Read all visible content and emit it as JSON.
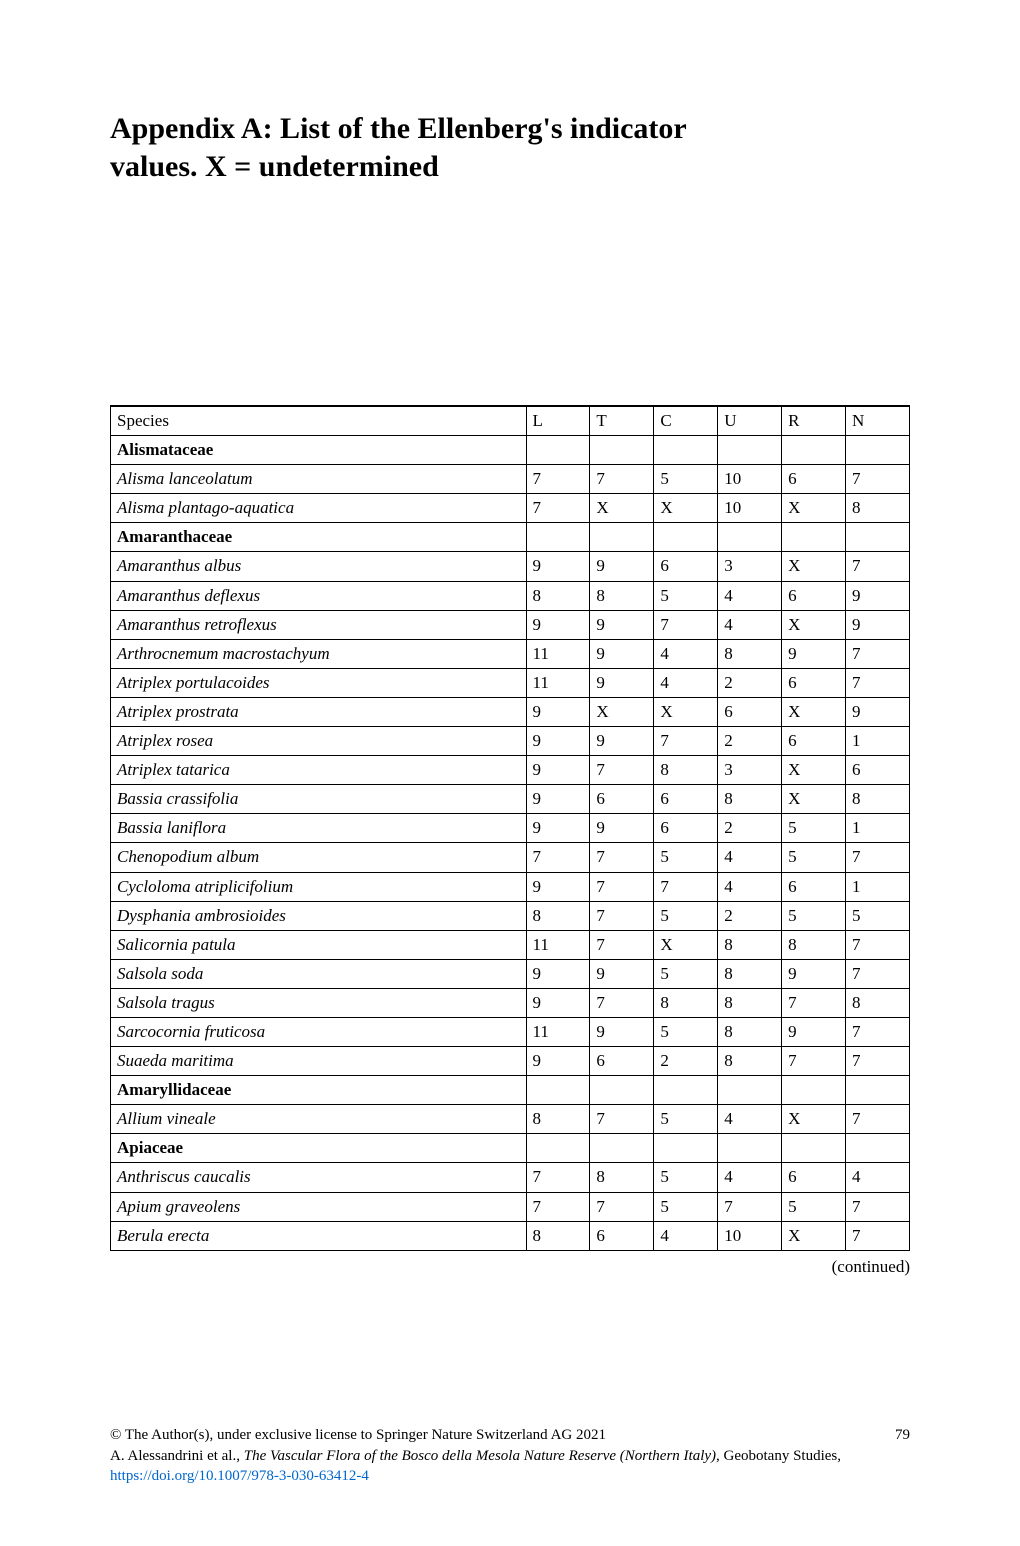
{
  "title_line1": "Appendix A: List of the Ellenberg's indicator",
  "title_line2": "values. X = undetermined",
  "columns": [
    "Species",
    "L",
    "T",
    "C",
    "U",
    "R",
    "N"
  ],
  "rows": [
    {
      "species": "Alismataceae",
      "family": true,
      "L": "",
      "T": "",
      "C": "",
      "U": "",
      "R": "",
      "N": ""
    },
    {
      "species": "Alisma lanceolatum",
      "L": "7",
      "T": "7",
      "C": "5",
      "U": "10",
      "R": "6",
      "N": "7"
    },
    {
      "species": "Alisma plantago-aquatica",
      "L": "7",
      "T": "X",
      "C": "X",
      "U": "10",
      "R": "X",
      "N": "8"
    },
    {
      "species": "Amaranthaceae",
      "family": true,
      "L": "",
      "T": "",
      "C": "",
      "U": "",
      "R": "",
      "N": ""
    },
    {
      "species": "Amaranthus albus",
      "L": "9",
      "T": "9",
      "C": "6",
      "U": "3",
      "R": "X",
      "N": "7"
    },
    {
      "species": "Amaranthus deflexus",
      "L": "8",
      "T": "8",
      "C": "5",
      "U": "4",
      "R": "6",
      "N": "9"
    },
    {
      "species": "Amaranthus retroflexus",
      "L": "9",
      "T": "9",
      "C": "7",
      "U": "4",
      "R": "X",
      "N": "9"
    },
    {
      "species": "Arthrocnemum macrostachyum",
      "L": "11",
      "T": "9",
      "C": "4",
      "U": "8",
      "R": "9",
      "N": "7"
    },
    {
      "species": "Atriplex portulacoides",
      "L": "11",
      "T": "9",
      "C": "4",
      "U": "2",
      "R": "6",
      "N": "7"
    },
    {
      "species": "Atriplex prostrata",
      "L": "9",
      "T": "X",
      "C": "X",
      "U": "6",
      "R": "X",
      "N": "9"
    },
    {
      "species": "Atriplex rosea",
      "L": "9",
      "T": "9",
      "C": "7",
      "U": "2",
      "R": "6",
      "N": "1"
    },
    {
      "species": "Atriplex tatarica",
      "L": "9",
      "T": "7",
      "C": "8",
      "U": "3",
      "R": "X",
      "N": "6"
    },
    {
      "species": "Bassia crassifolia",
      "L": "9",
      "T": "6",
      "C": "6",
      "U": "8",
      "R": "X",
      "N": "8"
    },
    {
      "species": "Bassia laniflora",
      "L": "9",
      "T": "9",
      "C": "6",
      "U": "2",
      "R": "5",
      "N": "1"
    },
    {
      "species": "Chenopodium album",
      "L": "7",
      "T": "7",
      "C": "5",
      "U": "4",
      "R": "5",
      "N": "7"
    },
    {
      "species": "Cycloloma atriplicifolium",
      "L": "9",
      "T": "7",
      "C": "7",
      "U": "4",
      "R": "6",
      "N": "1"
    },
    {
      "species": "Dysphania ambrosioides",
      "L": "8",
      "T": "7",
      "C": "5",
      "U": "2",
      "R": "5",
      "N": "5"
    },
    {
      "species": "Salicornia patula",
      "L": "11",
      "T": "7",
      "C": "X",
      "U": "8",
      "R": "8",
      "N": "7"
    },
    {
      "species": "Salsola soda",
      "L": "9",
      "T": "9",
      "C": "5",
      "U": "8",
      "R": "9",
      "N": "7"
    },
    {
      "species": "Salsola tragus",
      "L": "9",
      "T": "7",
      "C": "8",
      "U": "8",
      "R": "7",
      "N": "8"
    },
    {
      "species": "Sarcocornia fruticosa",
      "L": "11",
      "T": "9",
      "C": "5",
      "U": "8",
      "R": "9",
      "N": "7"
    },
    {
      "species": "Suaeda maritima",
      "L": "9",
      "T": "6",
      "C": "2",
      "U": "8",
      "R": "7",
      "N": "7"
    },
    {
      "species": "Amaryllidaceae",
      "family": true,
      "L": "",
      "T": "",
      "C": "",
      "U": "",
      "R": "",
      "N": ""
    },
    {
      "species": "Allium vineale",
      "L": "8",
      "T": "7",
      "C": "5",
      "U": "4",
      "R": "X",
      "N": "7"
    },
    {
      "species": "Apiaceae",
      "family": true,
      "L": "",
      "T": "",
      "C": "",
      "U": "",
      "R": "",
      "N": ""
    },
    {
      "species": "Anthriscus caucalis",
      "L": "7",
      "T": "8",
      "C": "5",
      "U": "4",
      "R": "6",
      "N": "4"
    },
    {
      "species": "Apium graveolens",
      "L": "7",
      "T": "7",
      "C": "5",
      "U": "7",
      "R": "5",
      "N": "7"
    },
    {
      "species": "Berula erecta",
      "L": "8",
      "T": "6",
      "C": "4",
      "U": "10",
      "R": "X",
      "N": "7"
    }
  ],
  "continued_text": "(continued)",
  "footer": {
    "copyright": "© The Author(s), under exclusive license to Springer Nature Switzerland AG 2021",
    "authors": "A. Alessandrini et al., ",
    "book_title": "The Vascular Flora of the Bosco della Mesola Nature Reserve (Northern Italy)",
    "series": ", Geobotany Studies, ",
    "doi_url": "https://doi.org/10.1007/978-3-030-63412-4",
    "page_number": "79"
  }
}
